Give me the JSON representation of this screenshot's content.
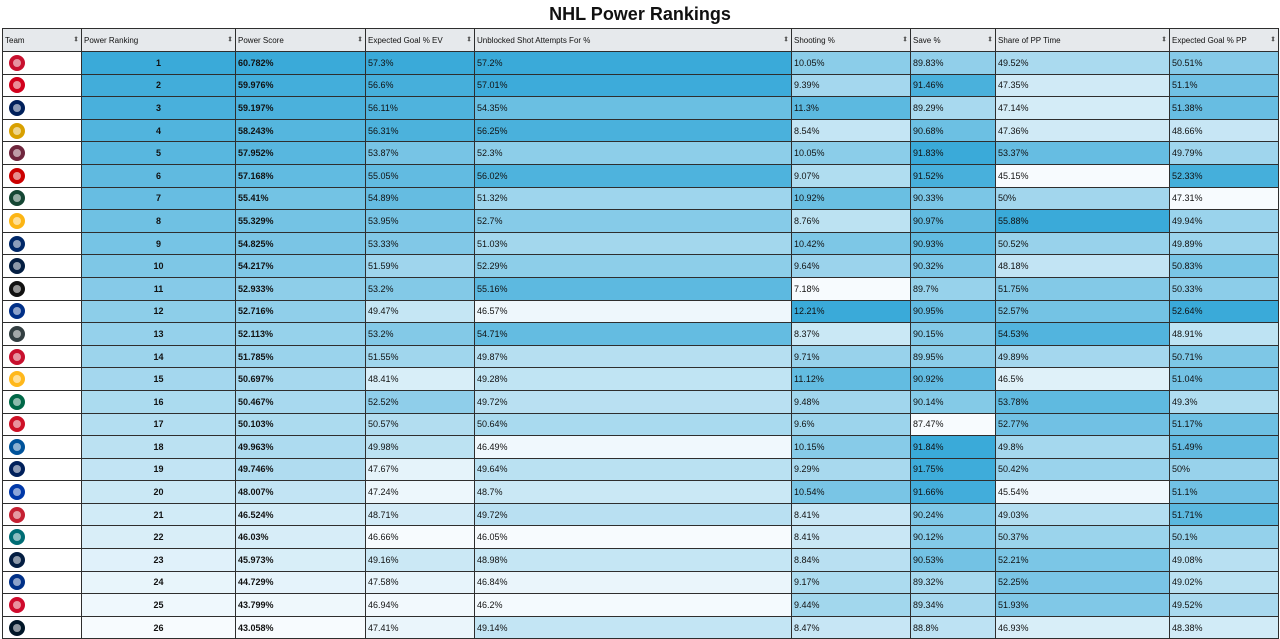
{
  "title": "NHL Power Rankings",
  "headers": [
    {
      "key": "team",
      "label": "Team"
    },
    {
      "key": "rank",
      "label": "Power Ranking"
    },
    {
      "key": "score",
      "label": "Power Score"
    },
    {
      "key": "xg_ev",
      "label": "Expected Goal % EV"
    },
    {
      "key": "usa",
      "label": "Unblocked Shot Attempts For %"
    },
    {
      "key": "sh",
      "label": "Shooting %"
    },
    {
      "key": "sv",
      "label": "Save %"
    },
    {
      "key": "pp_time",
      "label": "Share of PP Time"
    },
    {
      "key": "xg_pp",
      "label": "Expected Goal % PP"
    }
  ],
  "sort_icon": "sort-arrows-icon",
  "rows": [
    {
      "team": "florida-panthers",
      "logo_color": "#c8102e",
      "rank": "1",
      "score": "60.782%",
      "xg_ev": "57.3%",
      "usa": "57.2%",
      "sh": "10.05%",
      "sv": "89.83%",
      "pp_time": "49.52%",
      "xg_pp": "50.51%"
    },
    {
      "team": "calgary-flames",
      "logo_color": "#d2001c",
      "rank": "2",
      "score": "59.976%",
      "xg_ev": "56.6%",
      "usa": "57.01%",
      "sh": "9.39%",
      "sv": "91.46%",
      "pp_time": "47.35%",
      "xg_pp": "51.1%"
    },
    {
      "team": "toronto-maple-leafs",
      "logo_color": "#00205b",
      "rank": "3",
      "score": "59.197%",
      "xg_ev": "56.11%",
      "usa": "54.35%",
      "sh": "11.3%",
      "sv": "89.29%",
      "pp_time": "47.14%",
      "xg_pp": "51.38%"
    },
    {
      "team": "boston-bruins",
      "logo_color": "#d8a000",
      "rank": "4",
      "score": "58.243%",
      "xg_ev": "56.31%",
      "usa": "56.25%",
      "sh": "8.54%",
      "sv": "90.68%",
      "pp_time": "47.36%",
      "xg_pp": "48.66%"
    },
    {
      "team": "colorado-avalanche",
      "logo_color": "#6f263d",
      "rank": "5",
      "score": "57.952%",
      "xg_ev": "53.87%",
      "usa": "52.3%",
      "sh": "10.05%",
      "sv": "91.83%",
      "pp_time": "53.37%",
      "xg_pp": "49.79%"
    },
    {
      "team": "carolina-hurricanes",
      "logo_color": "#cc0000",
      "rank": "6",
      "score": "57.168%",
      "xg_ev": "55.05%",
      "usa": "56.02%",
      "sh": "9.07%",
      "sv": "91.52%",
      "pp_time": "45.15%",
      "xg_pp": "52.33%"
    },
    {
      "team": "minnesota-wild",
      "logo_color": "#154734",
      "rank": "7",
      "score": "55.41%",
      "xg_ev": "54.89%",
      "usa": "51.32%",
      "sh": "10.92%",
      "sv": "90.33%",
      "pp_time": "50%",
      "xg_pp": "47.31%"
    },
    {
      "team": "pittsburgh-penguins",
      "logo_color": "#fcb514",
      "rank": "8",
      "score": "55.329%",
      "xg_ev": "53.95%",
      "usa": "52.7%",
      "sh": "8.76%",
      "sv": "90.97%",
      "pp_time": "55.88%",
      "xg_pp": "49.94%"
    },
    {
      "team": "tampa-bay-lightning",
      "logo_color": "#002868",
      "rank": "9",
      "score": "54.825%",
      "xg_ev": "53.33%",
      "usa": "51.03%",
      "sh": "10.42%",
      "sv": "90.93%",
      "pp_time": "50.52%",
      "xg_pp": "49.89%"
    },
    {
      "team": "edmonton-oilers",
      "logo_color": "#041e42",
      "rank": "10",
      "score": "54.217%",
      "xg_ev": "51.59%",
      "usa": "52.29%",
      "sh": "9.64%",
      "sv": "90.32%",
      "pp_time": "48.18%",
      "xg_pp": "50.83%"
    },
    {
      "team": "los-angeles-kings",
      "logo_color": "#111111",
      "rank": "11",
      "score": "52.933%",
      "xg_ev": "53.2%",
      "usa": "55.16%",
      "sh": "7.18%",
      "sv": "89.7%",
      "pp_time": "51.75%",
      "xg_pp": "50.33%"
    },
    {
      "team": "st-louis-blues",
      "logo_color": "#002f87",
      "rank": "12",
      "score": "52.716%",
      "xg_ev": "49.47%",
      "usa": "46.57%",
      "sh": "12.21%",
      "sv": "90.95%",
      "pp_time": "52.57%",
      "xg_pp": "52.64%"
    },
    {
      "team": "vegas-golden-knights",
      "logo_color": "#333f42",
      "rank": "13",
      "score": "52.113%",
      "xg_ev": "53.2%",
      "usa": "54.71%",
      "sh": "8.37%",
      "sv": "90.15%",
      "pp_time": "54.53%",
      "xg_pp": "48.91%"
    },
    {
      "team": "washington-capitals",
      "logo_color": "#c8102e",
      "rank": "14",
      "score": "51.785%",
      "xg_ev": "51.55%",
      "usa": "49.87%",
      "sh": "9.71%",
      "sv": "89.95%",
      "pp_time": "49.89%",
      "xg_pp": "50.71%"
    },
    {
      "team": "nashville-predators",
      "logo_color": "#ffb81c",
      "rank": "15",
      "score": "50.697%",
      "xg_ev": "48.41%",
      "usa": "49.28%",
      "sh": "11.12%",
      "sv": "90.92%",
      "pp_time": "46.5%",
      "xg_pp": "51.04%"
    },
    {
      "team": "dallas-stars",
      "logo_color": "#006847",
      "rank": "16",
      "score": "50.467%",
      "xg_ev": "52.52%",
      "usa": "49.72%",
      "sh": "9.48%",
      "sv": "90.14%",
      "pp_time": "53.78%",
      "xg_pp": "49.3%"
    },
    {
      "team": "new-jersey-devils",
      "logo_color": "#ce1126",
      "rank": "17",
      "score": "50.103%",
      "xg_ev": "50.57%",
      "usa": "50.64%",
      "sh": "9.6%",
      "sv": "87.47%",
      "pp_time": "52.77%",
      "xg_pp": "51.17%"
    },
    {
      "team": "new-york-islanders",
      "logo_color": "#00539b",
      "rank": "18",
      "score": "49.963%",
      "xg_ev": "49.98%",
      "usa": "46.49%",
      "sh": "10.15%",
      "sv": "91.84%",
      "pp_time": "49.8%",
      "xg_pp": "51.49%"
    },
    {
      "team": "vancouver-canucks",
      "logo_color": "#00205b",
      "rank": "19",
      "score": "49.746%",
      "xg_ev": "47.67%",
      "usa": "49.64%",
      "sh": "9.29%",
      "sv": "91.75%",
      "pp_time": "50.42%",
      "xg_pp": "50%"
    },
    {
      "team": "new-york-rangers",
      "logo_color": "#0038a8",
      "rank": "20",
      "score": "48.007%",
      "xg_ev": "47.24%",
      "usa": "48.7%",
      "sh": "10.54%",
      "sv": "91.66%",
      "pp_time": "45.54%",
      "xg_pp": "51.1%"
    },
    {
      "team": "ottawa-senators",
      "logo_color": "#c52032",
      "rank": "21",
      "score": "46.524%",
      "xg_ev": "48.71%",
      "usa": "49.72%",
      "sh": "8.41%",
      "sv": "90.24%",
      "pp_time": "49.03%",
      "xg_pp": "51.71%"
    },
    {
      "team": "san-jose-sharks",
      "logo_color": "#006d75",
      "rank": "22",
      "score": "46.03%",
      "xg_ev": "46.66%",
      "usa": "46.05%",
      "sh": "8.41%",
      "sv": "90.12%",
      "pp_time": "50.37%",
      "xg_pp": "50.1%"
    },
    {
      "team": "winnipeg-jets",
      "logo_color": "#041e42",
      "rank": "23",
      "score": "45.973%",
      "xg_ev": "49.16%",
      "usa": "48.98%",
      "sh": "8.84%",
      "sv": "90.53%",
      "pp_time": "52.21%",
      "xg_pp": "49.08%"
    },
    {
      "team": "buffalo-sabres",
      "logo_color": "#003087",
      "rank": "24",
      "score": "44.729%",
      "xg_ev": "47.58%",
      "usa": "46.84%",
      "sh": "9.17%",
      "sv": "89.32%",
      "pp_time": "52.25%",
      "xg_pp": "49.02%"
    },
    {
      "team": "chicago-blackhawks",
      "logo_color": "#cf0a2c",
      "rank": "25",
      "score": "43.799%",
      "xg_ev": "46.94%",
      "usa": "46.2%",
      "sh": "9.44%",
      "sv": "89.34%",
      "pp_time": "51.93%",
      "xg_pp": "49.52%"
    },
    {
      "team": "seattle-kraken",
      "logo_color": "#001628",
      "rank": "26",
      "score": "43.058%",
      "xg_ev": "47.41%",
      "usa": "49.14%",
      "sh": "8.47%",
      "sv": "88.8%",
      "pp_time": "46.93%",
      "xg_pp": "48.38%"
    }
  ],
  "colors": {
    "scale_low": "#f7fbfe",
    "scale_high": "#3aaad9",
    "header_bg": "#e6e9ec",
    "border": "#2e2e2e"
  }
}
